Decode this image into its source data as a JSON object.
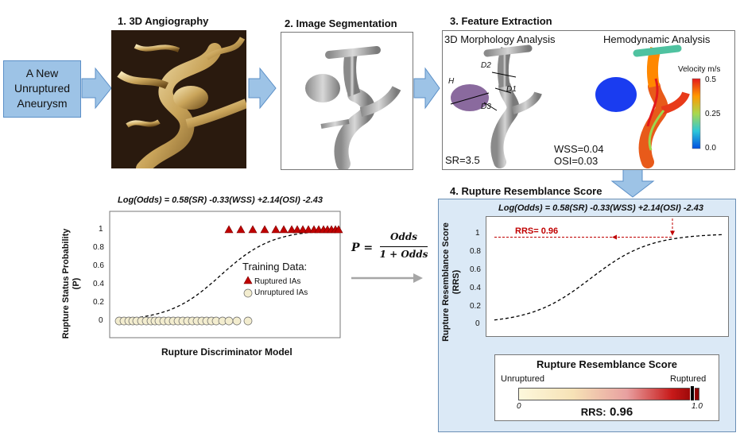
{
  "input_box": {
    "line1": "A New",
    "line2": "Unruptured",
    "line3": "Aneurysm"
  },
  "steps": {
    "s1": "1. 3D Angiography",
    "s2": "2. Image Segmentation",
    "s3": "3. Feature Extraction",
    "s4": "4. Rupture Resemblance Score"
  },
  "feature": {
    "morph_title": "3D Morphology Analysis",
    "hemo_title": "Hemodynamic Analysis",
    "labels": {
      "h": "H",
      "d1": "D1",
      "d2": "D2",
      "d3": "D3"
    },
    "sr": "SR=3.5",
    "wss": "WSS=0.04",
    "osi": "OSI=0.03",
    "velocity_title": "Velocity m/s",
    "velocity_ticks": [
      "0.5",
      "0.25",
      "0.0"
    ]
  },
  "formula": {
    "p": "P =",
    "num": "Odds",
    "den": "1 + Odds"
  },
  "equation": "Log(Odds) = 0.58(SR) -0.33(WSS) +2.14(OSI) -2.43",
  "left_chart": {
    "ylabel_line1": "Rupture Status Probability",
    "ylabel_line2": "(P)",
    "xlabel": "Rupture Discriminator Model",
    "yticks": [
      "1",
      "0.8",
      "0.6",
      "0.4",
      "0.2",
      "0"
    ],
    "legend_title": "Training Data:",
    "legend_ruptured": "Ruptured IAs",
    "legend_unruptured": "Unruptured IAs"
  },
  "right_chart": {
    "ylabel_line1": "Rupture Resemblance Score",
    "ylabel_line2": "(RRS)",
    "yticks": [
      "1",
      "0.8",
      "0.6",
      "0.4",
      "0.2",
      "0"
    ],
    "rrs_label": "RRS= 0.96"
  },
  "score_bar": {
    "title": "Rupture Resemblance Score",
    "left": "Unruptured",
    "right": "Ruptured",
    "min": "0",
    "max": "1.0",
    "result_prefix": "RRS:",
    "result_value": "0.96",
    "value": 0.96
  },
  "chart_data": [
    {
      "type": "scatter",
      "title": "Log(Odds) = 0.58(SR) -0.33(WSS) +2.14(OSI) -2.43",
      "xlabel": "Rupture Discriminator Model",
      "ylabel": "Rupture Status Probability (P)",
      "ylim": [
        0,
        1
      ],
      "series": [
        {
          "name": "Ruptured IAs",
          "y": 1
        },
        {
          "name": "Unruptured IAs",
          "y": 0
        }
      ]
    },
    {
      "type": "line",
      "title": "Log(Odds) = 0.58(SR) -0.33(WSS) +2.14(OSI) -2.43",
      "ylabel": "Rupture Resemblance Score (RRS)",
      "ylim": [
        0,
        1
      ],
      "annotation": {
        "text": "RRS= 0.96",
        "y": 0.96
      }
    }
  ],
  "colors": {
    "accent_blue": "#9dc3e6",
    "panel_bg": "#dbe9f6",
    "ruptured": "#c00000",
    "unruptured": "#f3edcf",
    "rrs_red": "#c00000"
  }
}
